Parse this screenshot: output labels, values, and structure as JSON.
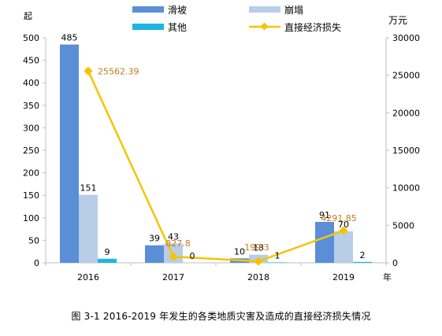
{
  "chart_data": {
    "type": "bar+line",
    "categories": [
      "2016",
      "2017",
      "2018",
      "2019"
    ],
    "series": [
      {
        "name": "滑坡",
        "type": "bar",
        "axis": "left",
        "color": "#5a8fd8",
        "values": [
          485,
          39,
          10,
          91
        ],
        "labels": [
          "485",
          "39",
          "10",
          "91"
        ]
      },
      {
        "name": "崩塌",
        "type": "bar",
        "axis": "left",
        "color": "#b8cde8",
        "values": [
          151,
          43,
          18,
          70
        ],
        "labels": [
          "151",
          "43",
          "18",
          "70"
        ]
      },
      {
        "name": "其他",
        "type": "bar",
        "axis": "left",
        "color": "#1fb5e0",
        "values": [
          9,
          0,
          1,
          2
        ],
        "labels": [
          "9",
          "0",
          "1",
          "2"
        ]
      },
      {
        "name": "直接经济损失",
        "type": "line",
        "axis": "right",
        "color": "#f5c400",
        "label_color": "#c87a1e",
        "values": [
          25562.39,
          827.8,
          199.3,
          4291.85
        ],
        "labels": [
          "25562.39",
          "827.8",
          "199.3",
          "4291.85"
        ]
      }
    ],
    "y_left": {
      "label": "起",
      "min": 0,
      "max": 500,
      "ticks": [
        "0",
        "50",
        "100",
        "150",
        "200",
        "250",
        "300",
        "350",
        "400",
        "450",
        "500"
      ]
    },
    "y_right": {
      "label": "万元",
      "min": 0,
      "max": 30000,
      "ticks": [
        "0",
        "5000",
        "10000",
        "15000",
        "20000",
        "25000",
        "30000"
      ]
    },
    "xlabel": "年",
    "grid": false,
    "legend_position": "top",
    "caption": "图 3-1   2016-2019 年发生的各类地质灾害及造成的直接经济损失情况"
  }
}
